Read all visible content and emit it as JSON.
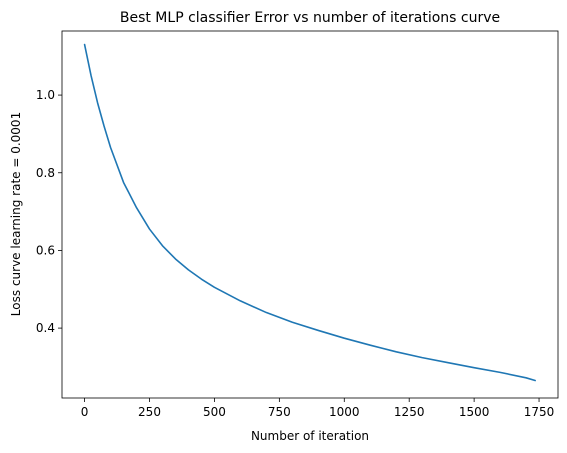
{
  "chart_data": {
    "type": "line",
    "title": "Best MLP classifier Error vs number of iterations curve",
    "xlabel": "Number of iteration",
    "ylabel": "Loss curve learning rate = 0.0001",
    "xlim": [
      -87,
      1823
    ],
    "ylim": [
      0.22,
      1.165
    ],
    "xticks": [
      0,
      250,
      500,
      750,
      1000,
      1250,
      1500,
      1750
    ],
    "yticks": [
      0.4,
      0.6,
      0.8,
      1.0
    ],
    "xtick_labels": [
      "0",
      "250",
      "500",
      "750",
      "1000",
      "1250",
      "1500",
      "1750"
    ],
    "ytick_labels": [
      "0.4",
      "0.6",
      "0.8",
      "1.0"
    ],
    "grid": false,
    "legend": "none",
    "series": [
      {
        "color": "#1f77b4",
        "x": [
          0,
          25,
          50,
          75,
          100,
          150,
          200,
          250,
          300,
          350,
          400,
          450,
          500,
          600,
          700,
          800,
          900,
          1000,
          1100,
          1200,
          1300,
          1400,
          1500,
          1600,
          1700,
          1735
        ],
        "y": [
          1.13,
          1.05,
          0.98,
          0.92,
          0.865,
          0.775,
          0.71,
          0.655,
          0.612,
          0.578,
          0.55,
          0.526,
          0.505,
          0.47,
          0.44,
          0.415,
          0.394,
          0.374,
          0.356,
          0.339,
          0.324,
          0.311,
          0.298,
          0.286,
          0.272,
          0.265
        ]
      }
    ]
  }
}
